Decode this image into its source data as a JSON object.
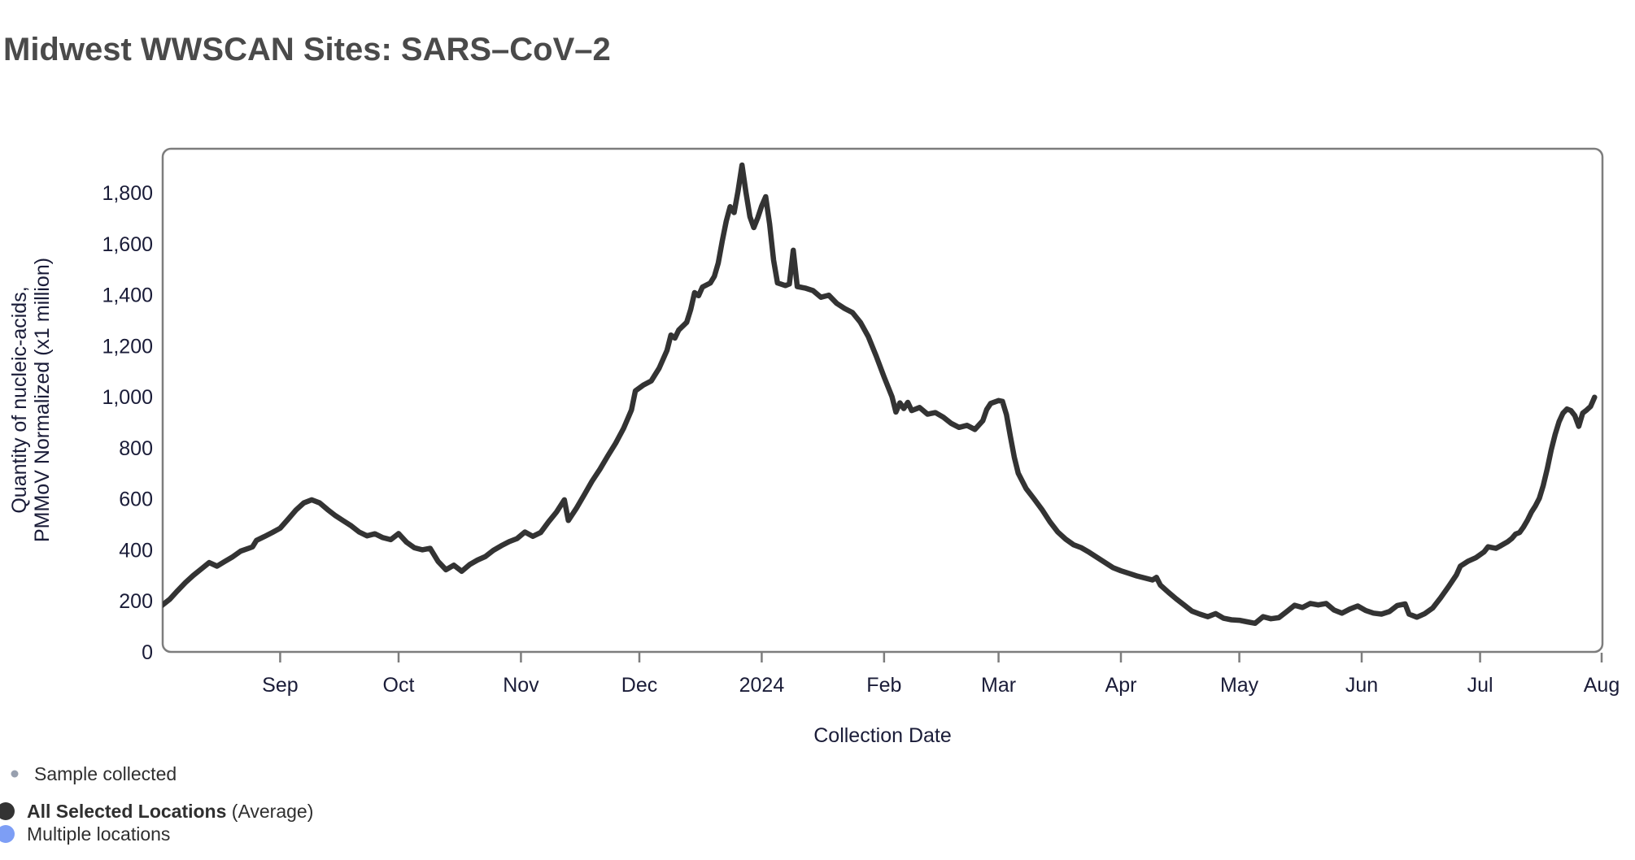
{
  "title": "Midwest WWSCAN Sites: SARS–CoV–2",
  "colors": {
    "title_text": "#4a4a4a",
    "axis_text": "#1a1c38",
    "frame": "#7d7d7d",
    "line": "#333333",
    "legend_sample_dot": "#98a0af",
    "legend_avg_dot": "#333333",
    "legend_multi_dot": "#7d9ef5"
  },
  "legend": {
    "sample_collected": {
      "label": "Sample collected",
      "dot_color": "#98a0af"
    },
    "all_selected": {
      "label_bold": "All Selected Locations",
      "label_rest": " (Average)",
      "dot_color": "#333333"
    },
    "multiple_locations": {
      "label": "Multiple locations",
      "dot_color": "#7d9ef5"
    }
  },
  "chart_data": {
    "type": "line",
    "title": "Midwest WWSCAN Sites: SARS–CoV–2",
    "xlabel": "Collection Date",
    "ylabel_lines": [
      "Quantity of nucleic-acids,",
      "PMMoV Normalized (x1 million)"
    ],
    "x_domain": [
      "2023-08-01",
      "2024-08-01"
    ],
    "ylim": [
      0,
      1910
    ],
    "grid": false,
    "legend_position": "bottom-left",
    "yticks": [
      {
        "value": 0,
        "label": "0"
      },
      {
        "value": 200,
        "label": "200"
      },
      {
        "value": 400,
        "label": "400"
      },
      {
        "value": 600,
        "label": "600"
      },
      {
        "value": 800,
        "label": "800"
      },
      {
        "value": 1000,
        "label": "1,000"
      },
      {
        "value": 1200,
        "label": "1,200"
      },
      {
        "value": 1400,
        "label": "1,400"
      },
      {
        "value": 1600,
        "label": "1,600"
      },
      {
        "value": 1800,
        "label": "1,800"
      }
    ],
    "xticks": [
      {
        "date": "2023-09-01",
        "label": "Sep"
      },
      {
        "date": "2023-10-01",
        "label": "Oct"
      },
      {
        "date": "2023-11-01",
        "label": "Nov"
      },
      {
        "date": "2023-12-01",
        "label": "Dec"
      },
      {
        "date": "2024-01-01",
        "label": "2024"
      },
      {
        "date": "2024-02-01",
        "label": "Feb"
      },
      {
        "date": "2024-03-01",
        "label": "Mar"
      },
      {
        "date": "2024-04-01",
        "label": "Apr"
      },
      {
        "date": "2024-05-01",
        "label": "May"
      },
      {
        "date": "2024-06-01",
        "label": "Jun"
      },
      {
        "date": "2024-07-01",
        "label": "Jul"
      },
      {
        "date": "2024-08-01",
        "label": "Aug"
      }
    ],
    "series": [
      {
        "name": "All Selected Locations (Average)",
        "color": "#333333",
        "points": [
          [
            "2023-08-02",
            182
          ],
          [
            "2023-08-04",
            206
          ],
          [
            "2023-08-06",
            240
          ],
          [
            "2023-08-08",
            272
          ],
          [
            "2023-08-10",
            300
          ],
          [
            "2023-08-12",
            325
          ],
          [
            "2023-08-14",
            350
          ],
          [
            "2023-08-16",
            336
          ],
          [
            "2023-08-18",
            355
          ],
          [
            "2023-08-20",
            373
          ],
          [
            "2023-08-22",
            395
          ],
          [
            "2023-08-24",
            406
          ],
          [
            "2023-08-25",
            412
          ],
          [
            "2023-08-26",
            437
          ],
          [
            "2023-08-28",
            452
          ],
          [
            "2023-08-30",
            468
          ],
          [
            "2023-09-01",
            485
          ],
          [
            "2023-09-03",
            520
          ],
          [
            "2023-09-05",
            556
          ],
          [
            "2023-09-07",
            584
          ],
          [
            "2023-09-09",
            596
          ],
          [
            "2023-09-11",
            584
          ],
          [
            "2023-09-13",
            558
          ],
          [
            "2023-09-15",
            534
          ],
          [
            "2023-09-17",
            514
          ],
          [
            "2023-09-19",
            494
          ],
          [
            "2023-09-21",
            470
          ],
          [
            "2023-09-23",
            455
          ],
          [
            "2023-09-25",
            463
          ],
          [
            "2023-09-27",
            448
          ],
          [
            "2023-09-29",
            440
          ],
          [
            "2023-10-01",
            464
          ],
          [
            "2023-10-03",
            430
          ],
          [
            "2023-10-05",
            408
          ],
          [
            "2023-10-07",
            400
          ],
          [
            "2023-10-09",
            406
          ],
          [
            "2023-10-11",
            355
          ],
          [
            "2023-10-13",
            322
          ],
          [
            "2023-10-15",
            340
          ],
          [
            "2023-10-17",
            316
          ],
          [
            "2023-10-19",
            342
          ],
          [
            "2023-10-21",
            360
          ],
          [
            "2023-10-23",
            374
          ],
          [
            "2023-10-25",
            398
          ],
          [
            "2023-10-27",
            416
          ],
          [
            "2023-10-29",
            432
          ],
          [
            "2023-10-31",
            444
          ],
          [
            "2023-11-02",
            470
          ],
          [
            "2023-11-04",
            453
          ],
          [
            "2023-11-06",
            468
          ],
          [
            "2023-11-08",
            510
          ],
          [
            "2023-11-10",
            548
          ],
          [
            "2023-11-12",
            596
          ],
          [
            "2023-11-13",
            515
          ],
          [
            "2023-11-15",
            562
          ],
          [
            "2023-11-17",
            615
          ],
          [
            "2023-11-19",
            669
          ],
          [
            "2023-11-21",
            716
          ],
          [
            "2023-11-23",
            768
          ],
          [
            "2023-11-25",
            818
          ],
          [
            "2023-11-27",
            876
          ],
          [
            "2023-11-29",
            948
          ],
          [
            "2023-11-30",
            1023
          ],
          [
            "2023-12-02",
            1046
          ],
          [
            "2023-12-04",
            1062
          ],
          [
            "2023-12-06",
            1112
          ],
          [
            "2023-12-08",
            1182
          ],
          [
            "2023-12-09",
            1242
          ],
          [
            "2023-12-10",
            1230
          ],
          [
            "2023-12-11",
            1262
          ],
          [
            "2023-12-13",
            1292
          ],
          [
            "2023-12-14",
            1342
          ],
          [
            "2023-12-15",
            1408
          ],
          [
            "2023-12-16",
            1396
          ],
          [
            "2023-12-17",
            1430
          ],
          [
            "2023-12-19",
            1446
          ],
          [
            "2023-12-20",
            1472
          ],
          [
            "2023-12-21",
            1524
          ],
          [
            "2023-12-22",
            1610
          ],
          [
            "2023-12-23",
            1688
          ],
          [
            "2023-12-24",
            1745
          ],
          [
            "2023-12-25",
            1722
          ],
          [
            "2023-12-26",
            1806
          ],
          [
            "2023-12-27",
            1908
          ],
          [
            "2023-12-28",
            1802
          ],
          [
            "2023-12-29",
            1706
          ],
          [
            "2023-12-30",
            1663
          ],
          [
            "2023-12-31",
            1702
          ],
          [
            "2024-01-01",
            1748
          ],
          [
            "2024-01-02",
            1784
          ],
          [
            "2024-01-03",
            1678
          ],
          [
            "2024-01-04",
            1536
          ],
          [
            "2024-01-05",
            1446
          ],
          [
            "2024-01-07",
            1436
          ],
          [
            "2024-01-08",
            1442
          ],
          [
            "2024-01-09",
            1574
          ],
          [
            "2024-01-10",
            1432
          ],
          [
            "2024-01-12",
            1426
          ],
          [
            "2024-01-14",
            1416
          ],
          [
            "2024-01-16",
            1390
          ],
          [
            "2024-01-18",
            1398
          ],
          [
            "2024-01-20",
            1366
          ],
          [
            "2024-01-22",
            1346
          ],
          [
            "2024-01-24",
            1330
          ],
          [
            "2024-01-26",
            1292
          ],
          [
            "2024-01-28",
            1236
          ],
          [
            "2024-01-30",
            1160
          ],
          [
            "2024-02-01",
            1077
          ],
          [
            "2024-02-03",
            1000
          ],
          [
            "2024-02-04",
            940
          ],
          [
            "2024-02-05",
            976
          ],
          [
            "2024-02-06",
            954
          ],
          [
            "2024-02-07",
            978
          ],
          [
            "2024-02-08",
            946
          ],
          [
            "2024-02-10",
            958
          ],
          [
            "2024-02-12",
            932
          ],
          [
            "2024-02-14",
            938
          ],
          [
            "2024-02-16",
            920
          ],
          [
            "2024-02-18",
            896
          ],
          [
            "2024-02-20",
            880
          ],
          [
            "2024-02-22",
            888
          ],
          [
            "2024-02-24",
            872
          ],
          [
            "2024-02-26",
            906
          ],
          [
            "2024-02-27",
            950
          ],
          [
            "2024-02-28",
            974
          ],
          [
            "2024-03-01",
            985
          ],
          [
            "2024-03-02",
            982
          ],
          [
            "2024-03-03",
            930
          ],
          [
            "2024-03-04",
            845
          ],
          [
            "2024-03-05",
            762
          ],
          [
            "2024-03-06",
            700
          ],
          [
            "2024-03-08",
            640
          ],
          [
            "2024-03-10",
            600
          ],
          [
            "2024-03-12",
            558
          ],
          [
            "2024-03-14",
            510
          ],
          [
            "2024-03-16",
            470
          ],
          [
            "2024-03-18",
            442
          ],
          [
            "2024-03-20",
            420
          ],
          [
            "2024-03-22",
            408
          ],
          [
            "2024-03-24",
            390
          ],
          [
            "2024-03-26",
            370
          ],
          [
            "2024-03-28",
            350
          ],
          [
            "2024-03-30",
            330
          ],
          [
            "2024-04-01",
            318
          ],
          [
            "2024-04-03",
            308
          ],
          [
            "2024-04-05",
            298
          ],
          [
            "2024-04-07",
            290
          ],
          [
            "2024-04-09",
            282
          ],
          [
            "2024-04-10",
            292
          ],
          [
            "2024-04-11",
            262
          ],
          [
            "2024-04-13",
            234
          ],
          [
            "2024-04-15",
            208
          ],
          [
            "2024-04-17",
            184
          ],
          [
            "2024-04-19",
            160
          ],
          [
            "2024-04-21",
            148
          ],
          [
            "2024-04-23",
            138
          ],
          [
            "2024-04-25",
            150
          ],
          [
            "2024-04-27",
            132
          ],
          [
            "2024-04-29",
            126
          ],
          [
            "2024-05-01",
            124
          ],
          [
            "2024-05-03",
            118
          ],
          [
            "2024-05-05",
            112
          ],
          [
            "2024-05-07",
            138
          ],
          [
            "2024-05-09",
            130
          ],
          [
            "2024-05-11",
            134
          ],
          [
            "2024-05-13",
            158
          ],
          [
            "2024-05-15",
            183
          ],
          [
            "2024-05-17",
            174
          ],
          [
            "2024-05-19",
            190
          ],
          [
            "2024-05-21",
            184
          ],
          [
            "2024-05-23",
            190
          ],
          [
            "2024-05-25",
            164
          ],
          [
            "2024-05-27",
            152
          ],
          [
            "2024-05-29",
            168
          ],
          [
            "2024-05-31",
            180
          ],
          [
            "2024-06-02",
            162
          ],
          [
            "2024-06-04",
            152
          ],
          [
            "2024-06-06",
            148
          ],
          [
            "2024-06-08",
            158
          ],
          [
            "2024-06-10",
            182
          ],
          [
            "2024-06-12",
            188
          ],
          [
            "2024-06-13",
            148
          ],
          [
            "2024-06-15",
            136
          ],
          [
            "2024-06-17",
            150
          ],
          [
            "2024-06-19",
            172
          ],
          [
            "2024-06-21",
            212
          ],
          [
            "2024-06-23",
            256
          ],
          [
            "2024-06-25",
            302
          ],
          [
            "2024-06-26",
            336
          ],
          [
            "2024-06-28",
            356
          ],
          [
            "2024-06-30",
            370
          ],
          [
            "2024-07-02",
            392
          ],
          [
            "2024-07-03",
            412
          ],
          [
            "2024-07-05",
            406
          ],
          [
            "2024-07-06",
            414
          ],
          [
            "2024-07-08",
            432
          ],
          [
            "2024-07-09",
            444
          ],
          [
            "2024-07-10",
            462
          ],
          [
            "2024-07-11",
            468
          ],
          [
            "2024-07-12",
            490
          ],
          [
            "2024-07-13",
            516
          ],
          [
            "2024-07-14",
            548
          ],
          [
            "2024-07-15",
            572
          ],
          [
            "2024-07-16",
            602
          ],
          [
            "2024-07-17",
            652
          ],
          [
            "2024-07-18",
            717
          ],
          [
            "2024-07-19",
            790
          ],
          [
            "2024-07-20",
            852
          ],
          [
            "2024-07-21",
            902
          ],
          [
            "2024-07-22",
            936
          ],
          [
            "2024-07-23",
            952
          ],
          [
            "2024-07-24",
            946
          ],
          [
            "2024-07-25",
            926
          ],
          [
            "2024-07-26",
            884
          ],
          [
            "2024-07-27",
            936
          ],
          [
            "2024-07-28",
            948
          ],
          [
            "2024-07-29",
            962
          ],
          [
            "2024-07-30",
            998
          ]
        ]
      }
    ]
  }
}
